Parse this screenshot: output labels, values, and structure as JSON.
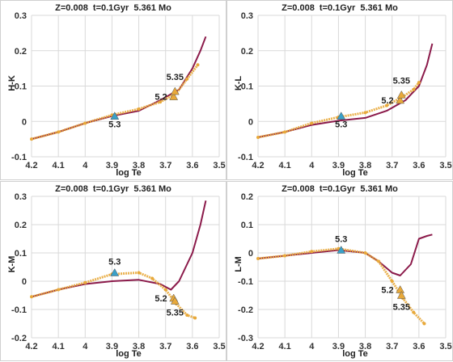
{
  "chart_data": [
    {
      "type": "line",
      "title": "Z=0.008  t=0.1Gyr  5.361 Mo",
      "xlabel": "log Te",
      "ylabel": "H-K",
      "xlim": [
        4.2,
        3.5
      ],
      "ylim": [
        -0.1,
        0.3
      ],
      "x_ticks": [
        "4.2",
        "4.1",
        "4",
        "3.9",
        "3.8",
        "3.7",
        "3.6",
        "3.5"
      ],
      "y_ticks": [
        "-0.1",
        "0",
        "0.1",
        "0.2",
        "0.3"
      ],
      "grid": true,
      "series": [
        {
          "color": "#8B1A4A",
          "x": [
            4.2,
            4.1,
            4.0,
            3.9,
            3.8,
            3.72,
            3.65,
            3.6,
            3.57,
            3.55
          ],
          "y": [
            -0.05,
            -0.03,
            -0.005,
            0.015,
            0.03,
            0.06,
            0.09,
            0.15,
            0.2,
            0.24
          ]
        },
        {
          "color": "#E8A93A",
          "x": [
            4.2,
            4.1,
            4.0,
            3.9,
            3.8,
            3.72,
            3.66,
            3.62,
            3.58
          ],
          "y": [
            -0.05,
            -0.03,
            -0.005,
            0.018,
            0.035,
            0.055,
            0.08,
            0.12,
            0.16
          ]
        }
      ],
      "markers": [
        {
          "label": "5.3",
          "x": 3.89,
          "y": 0.015,
          "color": "#3AA0C8"
        },
        {
          "label": "5.2",
          "x": 3.67,
          "y": 0.07,
          "color": "#E8A93A"
        },
        {
          "label": "5.35",
          "x": 3.665,
          "y": 0.085,
          "color": "#E8A93A"
        }
      ]
    },
    {
      "type": "line",
      "title": "Z=0.008  t=0.1Gyr  5.361 Mo",
      "xlabel": "log Te",
      "ylabel": "K-L",
      "xlim": [
        4.2,
        3.5
      ],
      "ylim": [
        -0.1,
        0.3
      ],
      "x_ticks": [
        "4.2",
        "4.1",
        "4",
        "3.9",
        "3.8",
        "3.7",
        "3.6",
        "3.5"
      ],
      "y_ticks": [
        "-0.1",
        "0",
        "0.1",
        "0.2",
        "0.3"
      ],
      "grid": true,
      "series": [
        {
          "color": "#8B1A4A",
          "x": [
            4.2,
            4.1,
            4.0,
            3.9,
            3.8,
            3.72,
            3.65,
            3.6,
            3.57,
            3.55
          ],
          "y": [
            -0.045,
            -0.03,
            -0.01,
            0.002,
            0.01,
            0.03,
            0.06,
            0.1,
            0.16,
            0.22
          ]
        },
        {
          "color": "#E8A93A",
          "x": [
            4.2,
            4.1,
            4.0,
            3.9,
            3.8,
            3.72,
            3.66,
            3.62,
            3.6
          ],
          "y": [
            -0.045,
            -0.03,
            -0.005,
            0.012,
            0.025,
            0.045,
            0.07,
            0.09,
            0.11
          ]
        }
      ],
      "markers": [
        {
          "label": "5.3",
          "x": 3.89,
          "y": 0.015,
          "color": "#3AA0C8"
        },
        {
          "label": "5.2",
          "x": 3.67,
          "y": 0.06,
          "color": "#E8A93A"
        },
        {
          "label": "5.35",
          "x": 3.665,
          "y": 0.075,
          "color": "#E8A93A"
        }
      ]
    },
    {
      "type": "line",
      "title": "Z=0.008  t=0.1Gyr  5.361 Mo",
      "xlabel": "log Te",
      "ylabel": "K-M",
      "xlim": [
        4.2,
        3.5
      ],
      "ylim": [
        -0.2,
        0.3
      ],
      "x_ticks": [
        "4.2",
        "4.1",
        "4",
        "3.9",
        "3.8",
        "3.7",
        "3.6",
        "3.5"
      ],
      "y_ticks": [
        "-0.2",
        "-0.1",
        "0",
        "0.1",
        "0.2",
        "0.3"
      ],
      "grid": true,
      "series": [
        {
          "color": "#8B1A4A",
          "x": [
            4.2,
            4.1,
            4.0,
            3.9,
            3.8,
            3.72,
            3.68,
            3.65,
            3.6,
            3.57,
            3.55
          ],
          "y": [
            -0.055,
            -0.03,
            -0.01,
            0.0,
            0.005,
            -0.01,
            -0.03,
            0.0,
            0.1,
            0.2,
            0.285
          ]
        },
        {
          "color": "#E8A93A",
          "x": [
            4.2,
            4.1,
            4.0,
            3.9,
            3.8,
            3.75,
            3.7,
            3.66,
            3.62,
            3.59
          ],
          "y": [
            -0.055,
            -0.03,
            -0.005,
            0.025,
            0.03,
            0.01,
            -0.03,
            -0.08,
            -0.12,
            -0.13
          ]
        }
      ],
      "markers": [
        {
          "label": "5.3",
          "x": 3.89,
          "y": 0.03,
          "color": "#3AA0C8"
        },
        {
          "label": "5.2",
          "x": 3.67,
          "y": -0.06,
          "color": "#E8A93A"
        },
        {
          "label": "5.35",
          "x": 3.665,
          "y": -0.07,
          "color": "#E8A93A"
        }
      ]
    },
    {
      "type": "line",
      "title": "Z=0.008  t=0.1Gyr  5.361 Mo",
      "xlabel": "log Te",
      "ylabel": "L-M",
      "xlim": [
        4.2,
        3.5
      ],
      "ylim": [
        -0.3,
        0.2
      ],
      "x_ticks": [
        "4.2",
        "4.1",
        "4",
        "3.9",
        "3.8",
        "3.7",
        "3.6",
        "3.5"
      ],
      "y_ticks": [
        "-0.3",
        "-0.2",
        "-0.1",
        "0",
        "0.1",
        "0.2"
      ],
      "grid": true,
      "series": [
        {
          "color": "#8B1A4A",
          "x": [
            4.2,
            4.1,
            4.0,
            3.9,
            3.8,
            3.75,
            3.7,
            3.67,
            3.63,
            3.6,
            3.57,
            3.55
          ],
          "y": [
            -0.02,
            -0.01,
            0.0,
            0.01,
            0.0,
            -0.03,
            -0.07,
            -0.08,
            -0.04,
            0.05,
            0.06,
            0.065
          ]
        },
        {
          "color": "#E8A93A",
          "x": [
            4.2,
            4.1,
            4.0,
            3.9,
            3.8,
            3.75,
            3.7,
            3.66,
            3.62,
            3.58
          ],
          "y": [
            -0.02,
            -0.01,
            0.005,
            0.015,
            0.0,
            -0.03,
            -0.1,
            -0.16,
            -0.21,
            -0.25
          ]
        }
      ],
      "markers": [
        {
          "label": "5.3",
          "x": 3.89,
          "y": 0.01,
          "color": "#3AA0C8"
        },
        {
          "label": "5.2",
          "x": 3.67,
          "y": -0.13,
          "color": "#E8A93A"
        },
        {
          "label": "5.35",
          "x": 3.665,
          "y": -0.15,
          "color": "#E8A93A"
        }
      ]
    }
  ]
}
